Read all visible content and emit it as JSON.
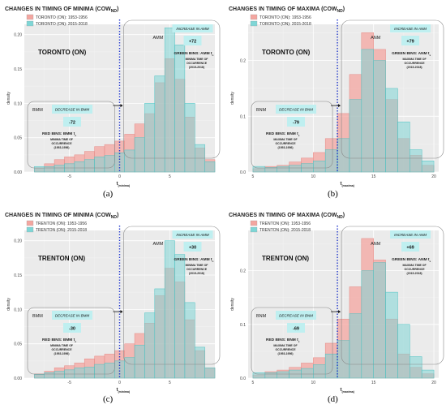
{
  "captions": [
    "(a)",
    "(b)",
    "(c)",
    "(d)"
  ],
  "chart_data": [
    {
      "type": "bar",
      "title": "CHANGES IN TIMING OF MINIMA (COW",
      "title_sub": "ND",
      "title_end": ")",
      "station": "TORONTO (ON)",
      "ylabel": "density",
      "xlabel": "t",
      "xlabel_sub": "(minima)",
      "xlim": [
        -9.5,
        9.5
      ],
      "ylim": [
        0,
        0.215
      ],
      "xticks": [
        -5,
        0,
        5
      ],
      "yticks": [
        0.0,
        0.05,
        0.1,
        0.15,
        0.2
      ],
      "ytick_labels": [
        "0.00",
        "0.05",
        "0.10",
        "0.15",
        "0.20"
      ],
      "threshold": 0,
      "bin_start": -8.5,
      "bin_width": 1,
      "series": [
        {
          "name": "TORONTO (ON): 1953-1956",
          "color": "#f4a6a0",
          "values": [
            0.005,
            0.012,
            0.018,
            0.022,
            0.025,
            0.03,
            0.037,
            0.04,
            0.045,
            0.055,
            0.07,
            0.085,
            0.13,
            0.165,
            0.135,
            0.08,
            0.035,
            0.018
          ]
        },
        {
          "name": "TORONTO (ON): 2015-2018",
          "color": "#7fd6d6",
          "values": [
            0.008,
            0.008,
            0.01,
            0.012,
            0.015,
            0.018,
            0.022,
            0.024,
            0.028,
            0.032,
            0.05,
            0.1,
            0.14,
            0.21,
            0.185,
            0.1,
            0.04,
            0.015
          ]
        }
      ],
      "left_box": {
        "name": "BMM",
        "pill": "DECREASE IN BMM",
        "value": "-72",
        "bins": "RED BINS: BMM t",
        "bins_sub": "n",
        "desc1": "MINIMA TIME OF",
        "desc2": "OCCURRENCE",
        "desc3": "(1953-1956)"
      },
      "right_box": {
        "name": "AMM",
        "pill": "INCREASE IN AMM",
        "value": "+72",
        "bins": "GREEN BINS: AMM t",
        "bins_sub": "n",
        "desc1": "MINIMA TIME OF",
        "desc2": "OCCURRENCE",
        "desc3": "(2015-2018)"
      }
    },
    {
      "type": "bar",
      "title": "CHANGES IN TIMING OF MAXIMA (COW",
      "title_sub": "ND",
      "title_end": ")",
      "station": "TORONTO (ON)",
      "ylabel": "density",
      "xlabel": "t",
      "xlabel_sub": "(maxima)",
      "xlim": [
        4.6,
        20.4
      ],
      "ylim": [
        0,
        0.265
      ],
      "xticks": [
        5,
        10,
        15,
        20
      ],
      "yticks": [
        0.0,
        0.1,
        0.2
      ],
      "ytick_labels": [
        "0.0",
        "0.1",
        "0.2"
      ],
      "threshold": 12,
      "bin_start": 5,
      "bin_width": 1,
      "series": [
        {
          "name": "TORONTO (ON): 1953-1956",
          "color": "#f4a6a0",
          "values": [
            0.006,
            0.01,
            0.012,
            0.018,
            0.025,
            0.035,
            0.06,
            0.105,
            0.175,
            0.25,
            0.22,
            0.13,
            0.06,
            0.03,
            0.012
          ]
        },
        {
          "name": "TORONTO (ON): 2015-2018",
          "color": "#7fd6d6",
          "values": [
            0.01,
            0.008,
            0.01,
            0.012,
            0.015,
            0.02,
            0.04,
            0.06,
            0.13,
            0.22,
            0.2,
            0.15,
            0.09,
            0.04,
            0.02
          ]
        }
      ],
      "left_box": {
        "name": "BNM",
        "pill": "DECREASE IN BNM",
        "value": "-79",
        "bins": "RED BINS: BNM t",
        "bins_sub": "x",
        "desc1": "MAXIMA TIME OF",
        "desc2": "OCCURRENCE",
        "desc3": "(1953-1956)"
      },
      "right_box": {
        "name": "ANM",
        "pill": "INCREASE IN ANM",
        "value": "+79",
        "bins": "GREEN BINS: ANM t",
        "bins_sub": "x",
        "desc1": "MAXIMA TIME OF",
        "desc2": "OCCURRENCE",
        "desc3": "(2015-2018)"
      }
    },
    {
      "type": "bar",
      "title": "CHANGES IN TIMING OF MINIMA (COW",
      "title_sub": "ND",
      "title_end": ")",
      "station": "TRENTON (ON)",
      "ylabel": "density",
      "xlabel": "t",
      "xlabel_sub": "(minima)",
      "xlim": [
        -9.5,
        9.5
      ],
      "ylim": [
        0,
        0.215
      ],
      "xticks": [
        -5,
        0,
        5
      ],
      "yticks": [
        0.0,
        0.05,
        0.1,
        0.15,
        0.2
      ],
      "ytick_labels": [
        "0.00",
        "0.05",
        "0.10",
        "0.15",
        "0.20"
      ],
      "threshold": 0,
      "bin_start": -8.5,
      "bin_width": 1,
      "series": [
        {
          "name": "TRENTON (ON): 1953-1956",
          "color": "#f4a6a0",
          "values": [
            0.006,
            0.01,
            0.015,
            0.018,
            0.022,
            0.028,
            0.032,
            0.035,
            0.04,
            0.05,
            0.065,
            0.08,
            0.12,
            0.16,
            0.14,
            0.085,
            0.04,
            0.015
          ]
        },
        {
          "name": "TRENTON (ON): 2015-2018",
          "color": "#7fd6d6",
          "values": [
            0.005,
            0.008,
            0.01,
            0.012,
            0.015,
            0.016,
            0.02,
            0.022,
            0.025,
            0.03,
            0.048,
            0.095,
            0.13,
            0.2,
            0.18,
            0.11,
            0.045,
            0.015
          ]
        }
      ],
      "left_box": {
        "name": "BMM",
        "pill": "DECREASE IN BMM",
        "value": "-30",
        "bins": "RED BINS: BMM t",
        "bins_sub": "n",
        "desc1": "MINIMA TIME OF",
        "desc2": "OCCURRENCE",
        "desc3": "(1953-1956)"
      },
      "right_box": {
        "name": "AMM",
        "pill": "INCREASE IN AMM",
        "value": "+30",
        "bins": "GREEN BINS: AMM t",
        "bins_sub": "n",
        "desc1": "MINIMA TIME OF",
        "desc2": "OCCURRENCE",
        "desc3": "(2015-2018)"
      }
    },
    {
      "type": "bar",
      "title": "CHANGES IN TIMING OF MAXIMA (COW",
      "title_sub": "ND",
      "title_end": ")",
      "station": "TRENTON (ON)",
      "ylabel": "density",
      "xlabel": "t",
      "xlabel_sub": "(maxima)",
      "xlim": [
        4.6,
        20.4
      ],
      "ylim": [
        0,
        0.275
      ],
      "xticks": [
        5,
        10,
        15,
        20
      ],
      "yticks": [
        0.0,
        0.1,
        0.2
      ],
      "ytick_labels": [
        "0.0",
        "0.1",
        "0.2"
      ],
      "threshold": 12,
      "bin_start": 5,
      "bin_width": 1,
      "series": [
        {
          "name": "TRENTON (ON): 1953-1956",
          "color": "#f4a6a0",
          "values": [
            0.006,
            0.012,
            0.015,
            0.02,
            0.028,
            0.038,
            0.065,
            0.11,
            0.17,
            0.26,
            0.22,
            0.11,
            0.045,
            0.02,
            0.008
          ]
        },
        {
          "name": "TRENTON (ON): 2015-2018",
          "color": "#7fd6d6",
          "values": [
            0.01,
            0.01,
            0.012,
            0.015,
            0.018,
            0.025,
            0.045,
            0.07,
            0.12,
            0.2,
            0.215,
            0.16,
            0.1,
            0.04,
            0.015
          ]
        }
      ],
      "left_box": {
        "name": "BNM",
        "pill": "DECREASE IN BNM",
        "value": "-69",
        "bins": "RED BINS: BNM t",
        "bins_sub": "x",
        "desc1": "MAXIMA TIME OF",
        "desc2": "OCCURRENCE",
        "desc3": "(1953-1956)"
      },
      "right_box": {
        "name": "ANM",
        "pill": "INCREASE IN ANM",
        "value": "+69",
        "bins": "GREEN BINS: ANM t",
        "bins_sub": "x",
        "desc1": "MAXIMA TIME OF",
        "desc2": "OCCURRENCE",
        "desc3": "(2015-2018)"
      }
    }
  ]
}
